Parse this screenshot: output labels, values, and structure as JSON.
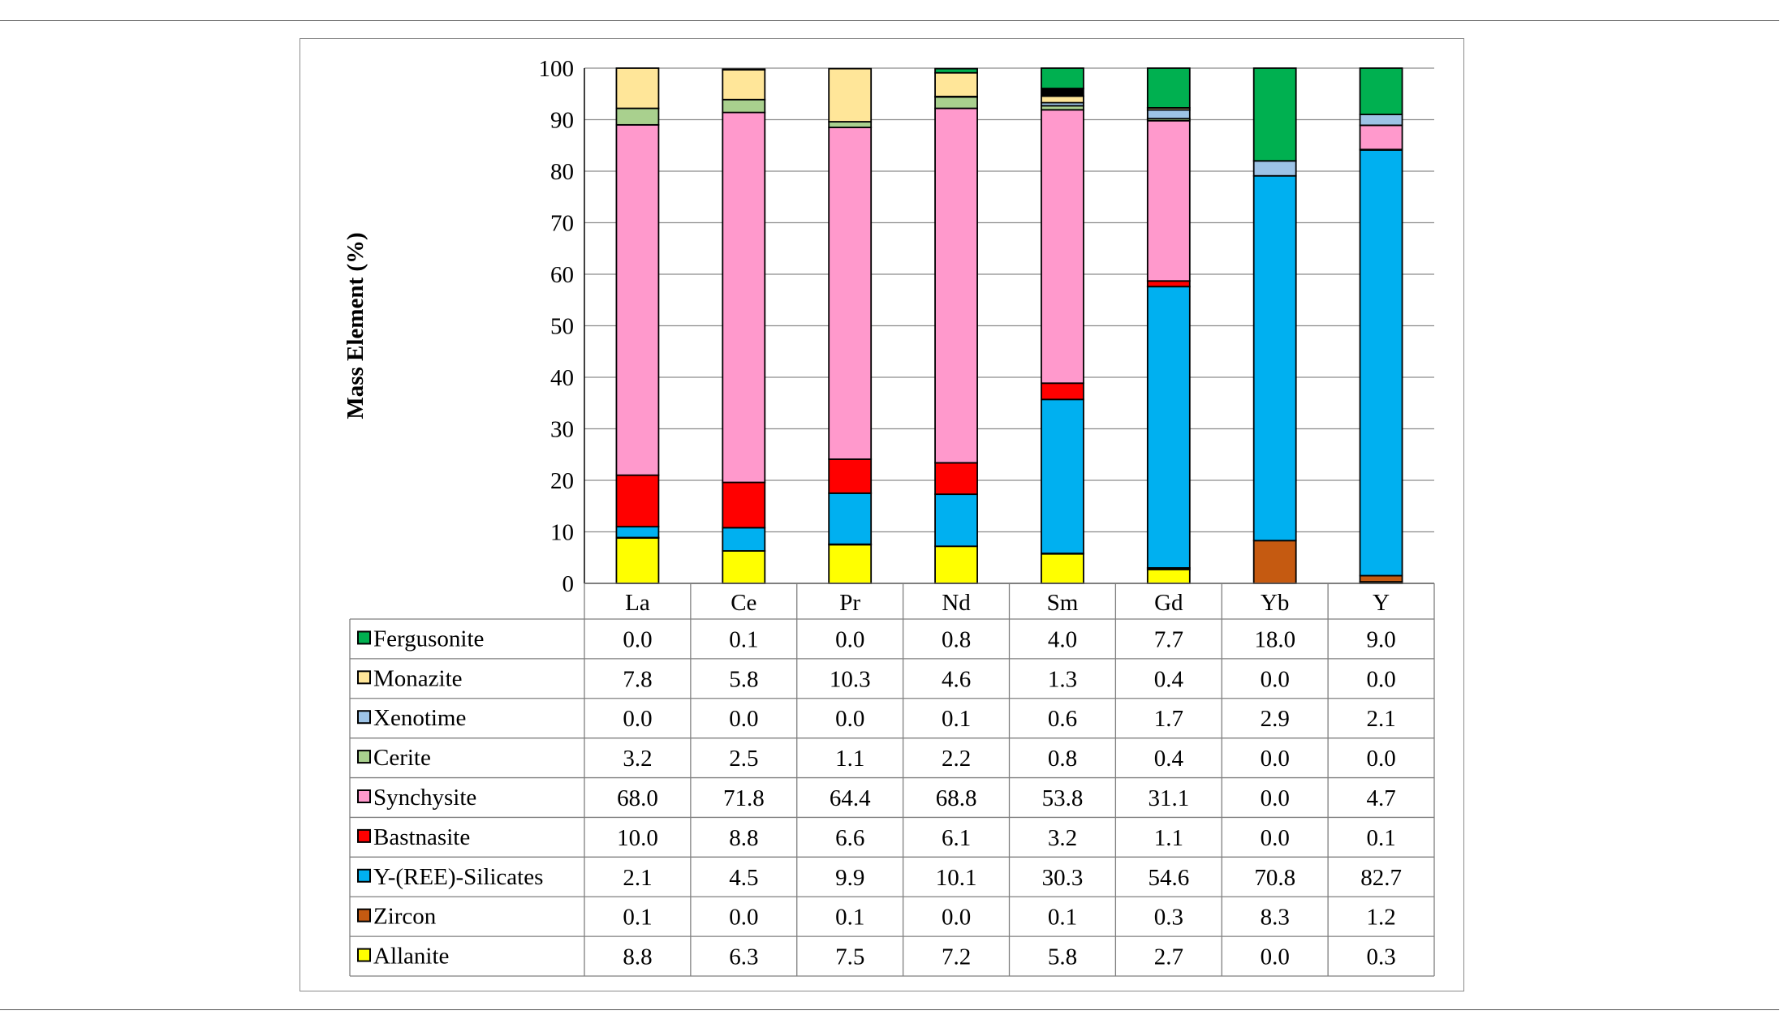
{
  "chart_data": {
    "type": "bar",
    "stacked": true,
    "ylabel": "Mass Element (%)",
    "xlabel": "",
    "title": "",
    "ylim": [
      0,
      100
    ],
    "yticks": [
      "0",
      "10",
      "20",
      "30",
      "40",
      "50",
      "60",
      "70",
      "80",
      "90",
      "100"
    ],
    "grid": true,
    "legend": "data-table",
    "categories": [
      "La",
      "Ce",
      "Pr",
      "Nd",
      "Sm",
      "Gd",
      "Yb",
      "Y"
    ],
    "series": [
      {
        "name": "Allanite",
        "color": "#ffff00",
        "values": [
          8.8,
          6.3,
          7.5,
          7.2,
          5.8,
          2.7,
          0.0,
          0.3
        ],
        "labels": [
          "8.8",
          "6.3",
          "7.5",
          "7.2",
          "5.8",
          "2.7",
          "0.0",
          "0.3"
        ]
      },
      {
        "name": "Zircon",
        "color": "#c55a11",
        "values": [
          0.1,
          0.0,
          0.1,
          0.0,
          0.1,
          0.3,
          8.3,
          1.2
        ],
        "labels": [
          "0.1",
          "0.0",
          "0.1",
          "0.0",
          "0.1",
          "0.3",
          "8.3",
          "1.2"
        ]
      },
      {
        "name": "Y-(REE)-Silicates",
        "color": "#00b0f0",
        "values": [
          2.1,
          4.5,
          9.9,
          10.1,
          30.3,
          54.6,
          70.8,
          82.7
        ],
        "labels": [
          "2.1",
          "4.5",
          "9.9",
          "10.1",
          "30.3",
          "54.6",
          "70.8",
          "82.7"
        ]
      },
      {
        "name": "Bastnasite",
        "color": "#ff0000",
        "values": [
          10.0,
          8.8,
          6.6,
          6.1,
          3.2,
          1.1,
          0.0,
          0.1
        ],
        "labels": [
          "10.0",
          "8.8",
          "6.6",
          "6.1",
          "3.2",
          "1.1",
          "0.0",
          "0.1"
        ]
      },
      {
        "name": "Synchysite",
        "color": "#ff99cc",
        "values": [
          68.0,
          71.8,
          64.4,
          68.8,
          53.8,
          31.1,
          0.0,
          4.7
        ],
        "labels": [
          "68.0",
          "71.8",
          "64.4",
          "68.8",
          "53.8",
          "31.1",
          "0.0",
          "4.7"
        ]
      },
      {
        "name": "Cerite",
        "color": "#a9d08e",
        "values": [
          3.2,
          2.5,
          1.1,
          2.2,
          0.8,
          0.4,
          0.0,
          0.0
        ],
        "labels": [
          "3.2",
          "2.5",
          "1.1",
          "2.2",
          "0.8",
          "0.4",
          "0.0",
          "0.0"
        ]
      },
      {
        "name": "Xenotime",
        "color": "#9dc3e6",
        "values": [
          0.0,
          0.0,
          0.0,
          0.1,
          0.6,
          1.7,
          2.9,
          2.1
        ],
        "labels": [
          "0.0",
          "0.0",
          "0.0",
          "0.1",
          "0.6",
          "1.7",
          "2.9",
          "2.1"
        ]
      },
      {
        "name": "Monazite",
        "color": "#ffe699",
        "values": [
          7.8,
          5.8,
          10.3,
          4.6,
          1.3,
          0.4,
          0.0,
          0.0
        ],
        "labels": [
          "7.8",
          "5.8",
          "10.3",
          "4.6",
          "1.3",
          "0.4",
          "0.0",
          "0.0"
        ]
      },
      {
        "name": "Fergusonite",
        "color": "#00b050",
        "values": [
          0.0,
          0.1,
          0.0,
          0.8,
          4.0,
          7.7,
          18.0,
          9.0
        ],
        "labels": [
          "0.0",
          "0.1",
          "0.0",
          "0.8",
          "4.0",
          "7.7",
          "18.0",
          "9.0"
        ]
      }
    ],
    "unlabeled_segment": {
      "color": "#000000",
      "values": [
        0,
        0,
        0,
        0,
        1.5,
        0,
        0,
        0
      ]
    },
    "table_row_order": [
      "Fergusonite",
      "Monazite",
      "Xenotime",
      "Cerite",
      "Synchysite",
      "Bastnasite",
      "Y-(REE)-Silicates",
      "Zircon",
      "Allanite"
    ]
  }
}
